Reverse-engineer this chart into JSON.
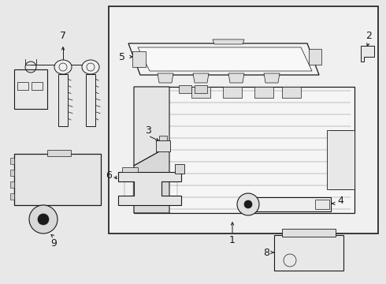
{
  "background_color": "#e8e8e8",
  "box_facecolor": "#efefef",
  "line_color": "#1a1a1a",
  "text_color": "#1a1a1a",
  "lw_main": 0.8,
  "lw_thick": 1.2
}
